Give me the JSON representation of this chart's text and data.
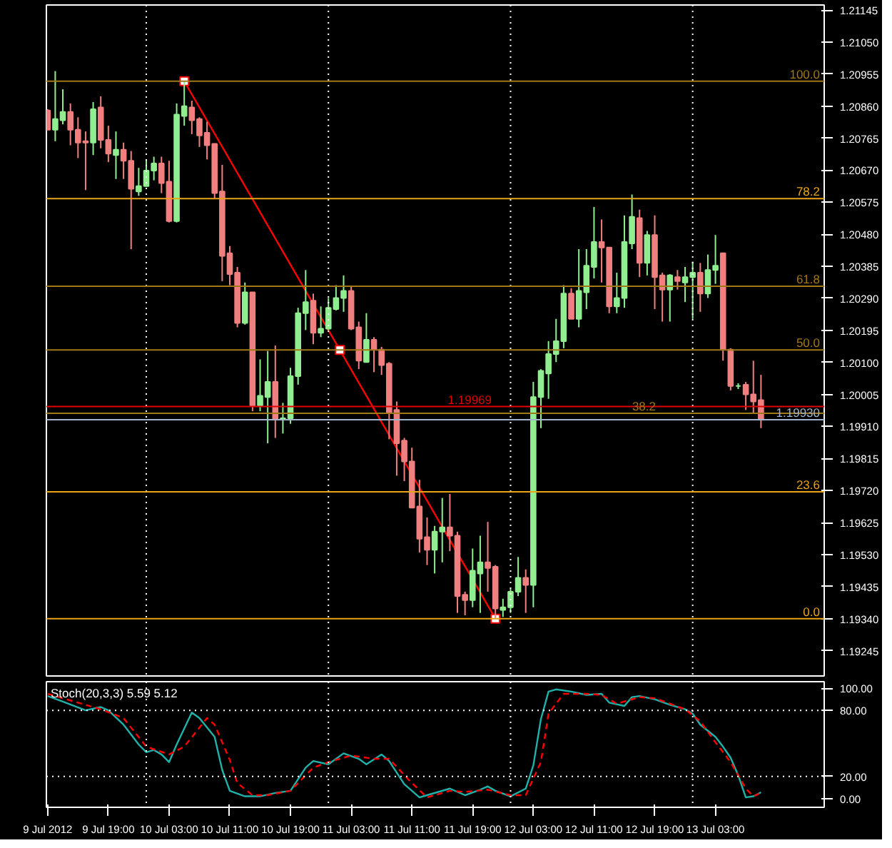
{
  "chart_data": [
    {
      "type": "candlestick",
      "x": [
        "2012-07-09T11:00",
        "2012-07-09T12:00",
        "2012-07-09T13:00",
        "2012-07-09T14:00",
        "2012-07-09T15:00",
        "2012-07-09T16:00",
        "2012-07-09T17:00",
        "2012-07-09T18:00",
        "2012-07-09T19:00",
        "2012-07-09T20:00",
        "2012-07-09T21:00",
        "2012-07-09T22:00",
        "2012-07-09T23:00",
        "2012-07-10T00:00",
        "2012-07-10T01:00",
        "2012-07-10T02:00",
        "2012-07-10T03:00",
        "2012-07-10T04:00",
        "2012-07-10T05:00",
        "2012-07-10T06:00",
        "2012-07-10T07:00",
        "2012-07-10T08:00",
        "2012-07-10T09:00",
        "2012-07-10T10:00",
        "2012-07-10T11:00",
        "2012-07-10T12:00",
        "2012-07-10T13:00",
        "2012-07-10T14:00",
        "2012-07-10T15:00",
        "2012-07-10T16:00",
        "2012-07-10T17:00",
        "2012-07-10T18:00",
        "2012-07-10T19:00",
        "2012-07-10T20:00",
        "2012-07-10T21:00",
        "2012-07-10T22:00",
        "2012-07-10T23:00",
        "2012-07-11T00:00",
        "2012-07-11T01:00",
        "2012-07-11T02:00",
        "2012-07-11T03:00",
        "2012-07-11T04:00",
        "2012-07-11T05:00",
        "2012-07-11T06:00",
        "2012-07-11T07:00",
        "2012-07-11T08:00",
        "2012-07-11T09:00",
        "2012-07-11T10:00",
        "2012-07-11T11:00",
        "2012-07-11T12:00",
        "2012-07-11T13:00",
        "2012-07-11T14:00",
        "2012-07-11T15:00",
        "2012-07-11T16:00",
        "2012-07-11T17:00",
        "2012-07-11T18:00",
        "2012-07-11T19:00",
        "2012-07-11T20:00",
        "2012-07-11T21:00",
        "2012-07-11T22:00",
        "2012-07-11T23:00",
        "2012-07-12T00:00",
        "2012-07-12T01:00",
        "2012-07-12T02:00",
        "2012-07-12T03:00",
        "2012-07-12T04:00",
        "2012-07-12T05:00",
        "2012-07-12T06:00",
        "2012-07-12T07:00",
        "2012-07-12T08:00",
        "2012-07-12T09:00",
        "2012-07-12T10:00",
        "2012-07-12T11:00",
        "2012-07-12T12:00",
        "2012-07-12T13:00",
        "2012-07-12T14:00",
        "2012-07-12T15:00",
        "2012-07-12T16:00",
        "2012-07-12T17:00",
        "2012-07-12T18:00",
        "2012-07-12T19:00",
        "2012-07-12T20:00",
        "2012-07-12T21:00",
        "2012-07-12T22:00",
        "2012-07-12T23:00",
        "2012-07-13T00:00",
        "2012-07-13T01:00",
        "2012-07-13T02:00",
        "2012-07-13T03:00",
        "2012-07-13T04:00",
        "2012-07-13T05:00",
        "2012-07-13T06:00",
        "2012-07-13T07:00",
        "2012-07-13T08:00",
        "2012-07-13T09:00"
      ],
      "ohlc": [
        [
          1.20847,
          1.20851,
          1.2079,
          1.2079
        ],
        [
          1.2079,
          1.20964,
          1.20756,
          1.20822
        ],
        [
          1.20818,
          1.2091,
          1.20806,
          1.20843
        ],
        [
          1.20843,
          1.20868,
          1.20744,
          1.2079
        ],
        [
          1.2079,
          1.20827,
          1.20706,
          1.20752
        ],
        [
          1.20756,
          1.20785,
          1.20611,
          1.20752
        ],
        [
          1.20752,
          1.20872,
          1.20715,
          1.20851
        ],
        [
          1.20856,
          1.20889,
          1.20735,
          1.2076
        ],
        [
          1.2076,
          1.20802,
          1.20694,
          1.20719
        ],
        [
          1.20715,
          1.20785,
          1.20644,
          1.20731
        ],
        [
          1.20731,
          1.20752,
          1.20644,
          1.20698
        ],
        [
          1.20698,
          1.20727,
          1.20436,
          1.20615
        ],
        [
          1.20607,
          1.20677,
          1.20594,
          1.20623
        ],
        [
          1.20623,
          1.20702,
          1.20623,
          1.20669
        ],
        [
          1.20669,
          1.2071,
          1.2064,
          1.2069
        ],
        [
          1.2069,
          1.2071,
          1.20602,
          1.20632
        ],
        [
          1.20636,
          1.20698,
          1.20515,
          1.20519
        ],
        [
          1.20519,
          1.20868,
          1.20515,
          1.20835
        ],
        [
          1.20831,
          1.20934,
          1.20802,
          1.2086
        ],
        [
          1.20856,
          1.20876,
          1.20777,
          1.20818
        ],
        [
          1.20822,
          1.20827,
          1.20739,
          1.20773
        ],
        [
          1.20781,
          1.20814,
          1.20702,
          1.20744
        ],
        [
          1.20748,
          1.20748,
          1.20586,
          1.20602
        ],
        [
          1.20607,
          1.20686,
          1.20341,
          1.20416
        ],
        [
          1.20424,
          1.20445,
          1.20329,
          1.20362
        ],
        [
          1.20366,
          1.20383,
          1.20204,
          1.20217
        ],
        [
          1.20217,
          1.20337,
          1.20212,
          1.20308
        ],
        [
          1.20308,
          1.20308,
          1.19955,
          1.19972
        ],
        [
          1.19972,
          1.20109,
          1.19955,
          1.20001
        ],
        [
          1.19997,
          1.20134,
          1.1986,
          1.20042
        ],
        [
          1.20042,
          1.2015,
          1.19876,
          1.1993
        ],
        [
          1.1993,
          1.1998,
          1.19889,
          1.19934
        ],
        [
          1.19934,
          1.20084,
          1.19918,
          1.20059
        ],
        [
          1.20059,
          1.20262,
          1.20034,
          1.20246
        ],
        [
          1.20246,
          1.20374,
          1.20196,
          1.20279
        ],
        [
          1.20283,
          1.20304,
          1.20154,
          1.20188
        ],
        [
          1.20188,
          1.20266,
          1.20175,
          1.202
        ],
        [
          1.202,
          1.20291,
          1.20196,
          1.20262
        ],
        [
          1.20258,
          1.20329,
          1.20254,
          1.20291
        ],
        [
          1.20291,
          1.20358,
          1.2025,
          1.20312
        ],
        [
          1.20312,
          1.20325,
          1.20196,
          1.202
        ],
        [
          1.20204,
          1.20221,
          1.2008,
          1.20105
        ],
        [
          1.20101,
          1.20246,
          1.20101,
          1.20167
        ],
        [
          1.20167,
          1.20175,
          1.20071,
          1.20138
        ],
        [
          1.20138,
          1.20146,
          1.20063,
          1.20092
        ],
        [
          1.20096,
          1.20101,
          1.19872,
          1.19951
        ],
        [
          1.19959,
          1.19984,
          1.19764,
          1.1986
        ],
        [
          1.19868,
          1.19876,
          1.19748,
          1.19806
        ],
        [
          1.19806,
          1.19847,
          1.19669,
          1.19669
        ],
        [
          1.19673,
          1.19752,
          1.19536,
          1.19577
        ],
        [
          1.19582,
          1.1964,
          1.19499,
          1.19544
        ],
        [
          1.19544,
          1.19615,
          1.19474,
          1.19598
        ],
        [
          1.19598,
          1.19698,
          1.19507,
          1.19611
        ],
        [
          1.19611,
          1.1971,
          1.1954,
          1.19586
        ],
        [
          1.19586,
          1.19598,
          1.19357,
          1.19407
        ],
        [
          1.19411,
          1.1942,
          1.1935,
          1.19395
        ],
        [
          1.19395,
          1.19548,
          1.19374,
          1.19482
        ],
        [
          1.19474,
          1.19586,
          1.19357,
          1.19507
        ],
        [
          1.19507,
          1.19627,
          1.1942,
          1.1949
        ],
        [
          1.19494,
          1.19499,
          1.1934,
          1.1937
        ],
        [
          1.19366,
          1.19399,
          1.19345,
          1.19374
        ],
        [
          1.19374,
          1.19428,
          1.19357,
          1.1942
        ],
        [
          1.1942,
          1.19523,
          1.19407,
          1.19461
        ],
        [
          1.19461,
          1.19486,
          1.19357,
          1.1944
        ],
        [
          1.1944,
          1.20042,
          1.19374,
          1.19997
        ],
        [
          1.19997,
          1.2008,
          1.19905,
          1.20075
        ],
        [
          1.20067,
          1.20163,
          1.19992,
          1.20125
        ],
        [
          1.20125,
          1.20229,
          1.20101,
          1.20163
        ],
        [
          1.20163,
          1.20329,
          1.20142,
          1.20304
        ],
        [
          1.20304,
          1.2032,
          1.20229,
          1.20229
        ],
        [
          1.20229,
          1.20436,
          1.20204,
          1.20312
        ],
        [
          1.20308,
          1.20436,
          1.20258,
          1.20387
        ],
        [
          1.20383,
          1.20561,
          1.20349,
          1.20457
        ],
        [
          1.20457,
          1.20524,
          1.20337,
          1.20441
        ],
        [
          1.20441,
          1.20441,
          1.20246,
          1.20266
        ],
        [
          1.20266,
          1.20366,
          1.20246,
          1.20291
        ],
        [
          1.20291,
          1.20536,
          1.20262,
          1.20457
        ],
        [
          1.20453,
          1.20598,
          1.20436,
          1.20532
        ],
        [
          1.20528,
          1.20553,
          1.20353,
          1.20395
        ],
        [
          1.20395,
          1.2049,
          1.20358,
          1.20478
        ],
        [
          1.20478,
          1.20536,
          1.20258,
          1.20353
        ],
        [
          1.20358,
          1.20366,
          1.20221,
          1.20316
        ],
        [
          1.20316,
          1.20362,
          1.20221,
          1.20358
        ],
        [
          1.20353,
          1.20374,
          1.20316,
          1.20341
        ],
        [
          1.20337,
          1.20383,
          1.20279,
          1.20353
        ],
        [
          1.20353,
          1.20399,
          1.20229,
          1.20366
        ],
        [
          1.20366,
          1.20395,
          1.2025,
          1.20304
        ],
        [
          1.20304,
          1.2042,
          1.20291,
          1.20374
        ],
        [
          1.20374,
          1.20478,
          1.20333,
          1.20387
        ],
        [
          1.20424,
          1.20424,
          1.20105,
          1.20138
        ],
        [
          1.20138,
          1.20142,
          1.20017,
          1.2003
        ],
        [
          1.2003,
          1.20038,
          1.20021,
          1.2003
        ],
        [
          1.20034,
          1.20042,
          1.19959,
          1.20005
        ],
        [
          1.20005,
          1.20105,
          1.19947,
          1.19984
        ],
        [
          1.19988,
          1.20063,
          1.19905,
          1.1993
        ]
      ],
      "colors": [
        "#f08080",
        "#90ee90",
        "#90ee90",
        "#f08080",
        "#f08080",
        "#f08080",
        "#90ee90",
        "#f08080",
        "#f08080",
        "#90ee90",
        "#f08080",
        "#f08080",
        "#90ee90",
        "#90ee90",
        "#90ee90",
        "#f08080",
        "#f08080",
        "#90ee90",
        "#90ee90",
        "#f08080",
        "#f08080",
        "#f08080",
        "#f08080",
        "#f08080",
        "#f08080",
        "#f08080",
        "#90ee90",
        "#f08080",
        "#90ee90",
        "#90ee90",
        "#f08080",
        "#90ee90",
        "#90ee90",
        "#90ee90",
        "#90ee90",
        "#f08080",
        "#90ee90",
        "#90ee90",
        "#90ee90",
        "#90ee90",
        "#f08080",
        "#f08080",
        "#90ee90",
        "#f08080",
        "#f08080",
        "#f08080",
        "#f08080",
        "#f08080",
        "#f08080",
        "#f08080",
        "#f08080",
        "#90ee90",
        "#90ee90",
        "#f08080",
        "#f08080",
        "#f08080",
        "#90ee90",
        "#90ee90",
        "#f08080",
        "#f08080",
        "#90ee90",
        "#90ee90",
        "#90ee90",
        "#f08080",
        "#90ee90",
        "#90ee90",
        "#90ee90",
        "#90ee90",
        "#90ee90",
        "#f08080",
        "#90ee90",
        "#90ee90",
        "#90ee90",
        "#f08080",
        "#f08080",
        "#90ee90",
        "#90ee90",
        "#90ee90",
        "#f08080",
        "#90ee90",
        "#f08080",
        "#f08080",
        "#90ee90",
        "#f08080",
        "#90ee90",
        "#90ee90",
        "#f08080",
        "#90ee90",
        "#90ee90",
        "#f08080",
        "#f08080",
        "#90ee90",
        "#f08080",
        "#f08080",
        "#f08080"
      ],
      "series": [
        {
          "type": "line",
          "x": [
            "2012-07-10T05:00",
            "2012-07-11T01:30",
            "2012-07-11T22:00"
          ],
          "values": [
            1.20934,
            1.20137,
            1.1934
          ],
          "color": "#ff0000",
          "marker": "square"
        }
      ],
      "xlim": [
        "2012-07-09T10:50",
        "2012-07-13T17:20"
      ],
      "ylim": [
        1.1917,
        1.2116
      ],
      "yticks": [
        1.19245,
        {
          "value": 1.1934,
          "label": "1.19340"
        },
        1.19435,
        {
          "value": 1.1953,
          "label": "1.19530"
        },
        1.19625,
        {
          "value": 1.1972,
          "label": "1.19720"
        },
        1.19815,
        {
          "value": 1.1991,
          "label": "1.19910"
        },
        1.20005,
        {
          "value": 1.201,
          "label": "1.20100"
        },
        1.20195,
        {
          "value": 1.2029,
          "label": "1.20290"
        },
        1.20385,
        {
          "value": 1.2048,
          "label": "1.20480"
        },
        1.20575,
        {
          "value": 1.2067,
          "label": "1.20670"
        },
        1.20765,
        {
          "value": 1.2086,
          "label": "1.20860"
        },
        1.20955,
        {
          "value": 1.2105,
          "label": "1.21050"
        },
        1.21145
      ],
      "tick_labels": "y",
      "grid": false,
      "ref_lines": [
        {
          "axis": "x",
          "value": "2012-07-10T00:00",
          "color": "#ffffff",
          "line_style": "dotted"
        },
        {
          "axis": "x",
          "value": "2012-07-11T00:00",
          "color": "#ffffff",
          "line_style": "dotted"
        },
        {
          "axis": "x",
          "value": "2012-07-12T00:00",
          "color": "#ffffff",
          "line_style": "dotted"
        },
        {
          "axis": "x",
          "value": "2012-07-13T00:00",
          "color": "#ffffff",
          "line_style": "dotted"
        },
        {
          "axis": "y",
          "value": 1.20934,
          "color": "#a07818",
          "line_style": "solid"
        },
        {
          "axis": "y",
          "value": 1.20586,
          "color": "#e8a317",
          "line_style": "solid"
        },
        {
          "axis": "y",
          "value": 1.20326,
          "color": "#a07818",
          "line_style": "solid"
        },
        {
          "axis": "y",
          "value": 1.20137,
          "color": "#a07818",
          "line_style": "solid"
        },
        {
          "axis": "y",
          "value": 1.19949,
          "color": "#a07818",
          "line_style": "solid"
        },
        {
          "axis": "y",
          "value": 1.19716,
          "color": "#e8a317",
          "line_style": "solid"
        },
        {
          "axis": "y",
          "value": 1.1934,
          "color": "#e8a317",
          "line_style": "solid"
        },
        {
          "axis": "y",
          "value": 1.19969,
          "label": "1.19969",
          "color": "#e00000",
          "line_style": "solid"
        },
        {
          "axis": "y",
          "value": 1.1993,
          "label": "1.19930",
          "color": "#9fb4c8",
          "line_style": "solid"
        }
      ],
      "annotations": [
        {
          "text": "100.0",
          "y": 1.20934
        },
        {
          "text": "78.2",
          "y": 1.20586
        },
        {
          "text": "61.8",
          "y": 1.20326
        },
        {
          "text": "50.0",
          "y": 1.20137
        },
        {
          "text": "38.2",
          "y": 1.19949
        },
        {
          "text": "23.6",
          "y": 1.19716
        },
        {
          "text": "0.0",
          "y": 1.1934
        }
      ]
    },
    {
      "type": "line",
      "title": "Stoch(20,3,3) 5.59 5.12",
      "series": [
        {
          "x": [
            "2012-07-09T11:00",
            "2012-07-09T13:00",
            "2012-07-09T16:00",
            "2012-07-09T18:00",
            "2012-07-09T19:00",
            "2012-07-09T21:00",
            "2012-07-09T23:00",
            "2012-07-10T00:00",
            "2012-07-10T01:00",
            "2012-07-10T02:00",
            "2012-07-10T03:00",
            "2012-07-10T04:00",
            "2012-07-10T06:00",
            "2012-07-10T07:00",
            "2012-07-10T09:00",
            "2012-07-10T10:00",
            "2012-07-10T11:00",
            "2012-07-10T13:00",
            "2012-07-10T15:00",
            "2012-07-10T17:00",
            "2012-07-10T19:00",
            "2012-07-10T21:00",
            "2012-07-10T22:00",
            "2012-07-11T00:00",
            "2012-07-11T02:00",
            "2012-07-11T04:00",
            "2012-07-11T05:00",
            "2012-07-11T07:00",
            "2012-07-11T08:00",
            "2012-07-11T10:00",
            "2012-07-11T12:00",
            "2012-07-11T13:00",
            "2012-07-11T16:00",
            "2012-07-11T18:00",
            "2012-07-11T20:00",
            "2012-07-11T21:00",
            "2012-07-11T22:00",
            "2012-07-12T00:00",
            "2012-07-12T02:00",
            "2012-07-12T03:00",
            "2012-07-12T04:00",
            "2012-07-12T05:00",
            "2012-07-12T06:00",
            "2012-07-12T08:00",
            "2012-07-12T10:00",
            "2012-07-12T12:00",
            "2012-07-12T13:00",
            "2012-07-12T15:00",
            "2012-07-12T16:00",
            "2012-07-12T17:00",
            "2012-07-12T19:00",
            "2012-07-12T21:00",
            "2012-07-12T23:00",
            "2012-07-13T00:00",
            "2012-07-13T01:00",
            "2012-07-13T03:00",
            "2012-07-13T04:00",
            "2012-07-13T05:00",
            "2012-07-13T06:00",
            "2012-07-13T07:00",
            "2012-07-13T08:00",
            "2012-07-13T09:00"
          ],
          "values": [
            93,
            88,
            80,
            83,
            80,
            67,
            49,
            42,
            44,
            40,
            33,
            49,
            78,
            73,
            56,
            26,
            7,
            2,
            2,
            5,
            7,
            28,
            34,
            31,
            41,
            36,
            31,
            40,
            34,
            13,
            1,
            3,
            9,
            3,
            8,
            11,
            7,
            2,
            9,
            30,
            72,
            97,
            99,
            97,
            94,
            95,
            87,
            84,
            92,
            93,
            90,
            85,
            81,
            77,
            67,
            56,
            47,
            37,
            21,
            1,
            2,
            5.59
          ],
          "color": "#20b2aa",
          "line_style": "solid"
        },
        {
          "x": [
            "2012-07-09T11:00",
            "2012-07-09T15:00",
            "2012-07-09T18:00",
            "2012-07-09T21:00",
            "2012-07-10T00:00",
            "2012-07-10T03:00",
            "2012-07-10T05:00",
            "2012-07-10T08:00",
            "2012-07-10T09:00",
            "2012-07-10T11:00",
            "2012-07-10T12:00",
            "2012-07-10T14:00",
            "2012-07-10T16:00",
            "2012-07-10T19:00",
            "2012-07-10T22:00",
            "2012-07-11T00:00",
            "2012-07-11T03:00",
            "2012-07-11T06:00",
            "2012-07-11T08:00",
            "2012-07-11T11:00",
            "2012-07-11T13:00",
            "2012-07-11T16:00",
            "2012-07-11T18:00",
            "2012-07-11T21:00",
            "2012-07-12T00:00",
            "2012-07-12T02:00",
            "2012-07-12T04:00",
            "2012-07-12T05:00",
            "2012-07-12T07:00",
            "2012-07-12T10:00",
            "2012-07-12T12:00",
            "2012-07-12T14:00",
            "2012-07-12T17:00",
            "2012-07-12T19:00",
            "2012-07-12T23:00",
            "2012-07-13T01:00",
            "2012-07-13T03:00",
            "2012-07-13T05:00",
            "2012-07-13T07:00",
            "2012-07-13T08:00",
            "2012-07-13T09:00"
          ],
          "values": [
            95,
            87,
            81,
            73,
            47,
            40,
            47,
            73,
            67,
            35,
            14,
            3,
            3,
            7,
            28,
            33,
            39,
            36,
            36,
            14,
            1,
            7,
            6,
            8,
            3,
            3,
            33,
            77,
            95,
            95,
            94,
            86,
            92,
            91,
            81,
            70,
            51,
            33,
            9,
            2,
            5.12
          ],
          "color": "#ff0000",
          "line_style": "dashed"
        }
      ],
      "xlim": [
        "2012-07-09T10:50",
        "2012-07-13T17:20"
      ],
      "xticks": [
        {
          "value": "2012-07-09T11:00",
          "label": "9 Jul 2012"
        },
        {
          "value": "2012-07-09T19:00",
          "label": "9 Jul 19:00"
        },
        {
          "value": "2012-07-10T03:00",
          "label": "10 Jul 03:00"
        },
        {
          "value": "2012-07-10T11:00",
          "label": "10 Jul 11:00"
        },
        {
          "value": "2012-07-10T19:00",
          "label": "10 Jul 19:00"
        },
        {
          "value": "2012-07-11T03:00",
          "label": "11 Jul 03:00"
        },
        {
          "value": "2012-07-11T11:00",
          "label": "11 Jul 11:00"
        },
        {
          "value": "2012-07-11T19:00",
          "label": "11 Jul 19:00"
        },
        {
          "value": "2012-07-12T03:00",
          "label": "12 Jul 03:00"
        },
        {
          "value": "2012-07-12T11:00",
          "label": "12 Jul 11:00"
        },
        {
          "value": "2012-07-12T19:00",
          "label": "12 Jul 19:00"
        },
        {
          "value": "2012-07-13T03:00",
          "label": "13 Jul 03:00"
        }
      ],
      "ylim": [
        -8,
        106
      ],
      "yticks": [
        {
          "value": 0,
          "label": "0.00"
        },
        {
          "value": 20,
          "label": "20.00"
        },
        {
          "value": 80,
          "label": "80.00"
        },
        {
          "value": 100,
          "label": "100.00"
        }
      ],
      "grid": false,
      "ref_lines": [
        {
          "axis": "x",
          "value": "2012-07-10T00:00",
          "color": "#ffffff",
          "line_style": "dotted"
        },
        {
          "axis": "x",
          "value": "2012-07-11T00:00",
          "color": "#ffffff",
          "line_style": "dotted"
        },
        {
          "axis": "x",
          "value": "2012-07-12T00:00",
          "color": "#ffffff",
          "line_style": "dotted"
        },
        {
          "axis": "x",
          "value": "2012-07-13T00:00",
          "color": "#ffffff",
          "line_style": "dotted"
        },
        {
          "axis": "y",
          "value": 20,
          "color": "#ffffff",
          "line_style": "dotted"
        },
        {
          "axis": "y",
          "value": 80,
          "color": "#ffffff",
          "line_style": "dotted"
        }
      ]
    }
  ]
}
